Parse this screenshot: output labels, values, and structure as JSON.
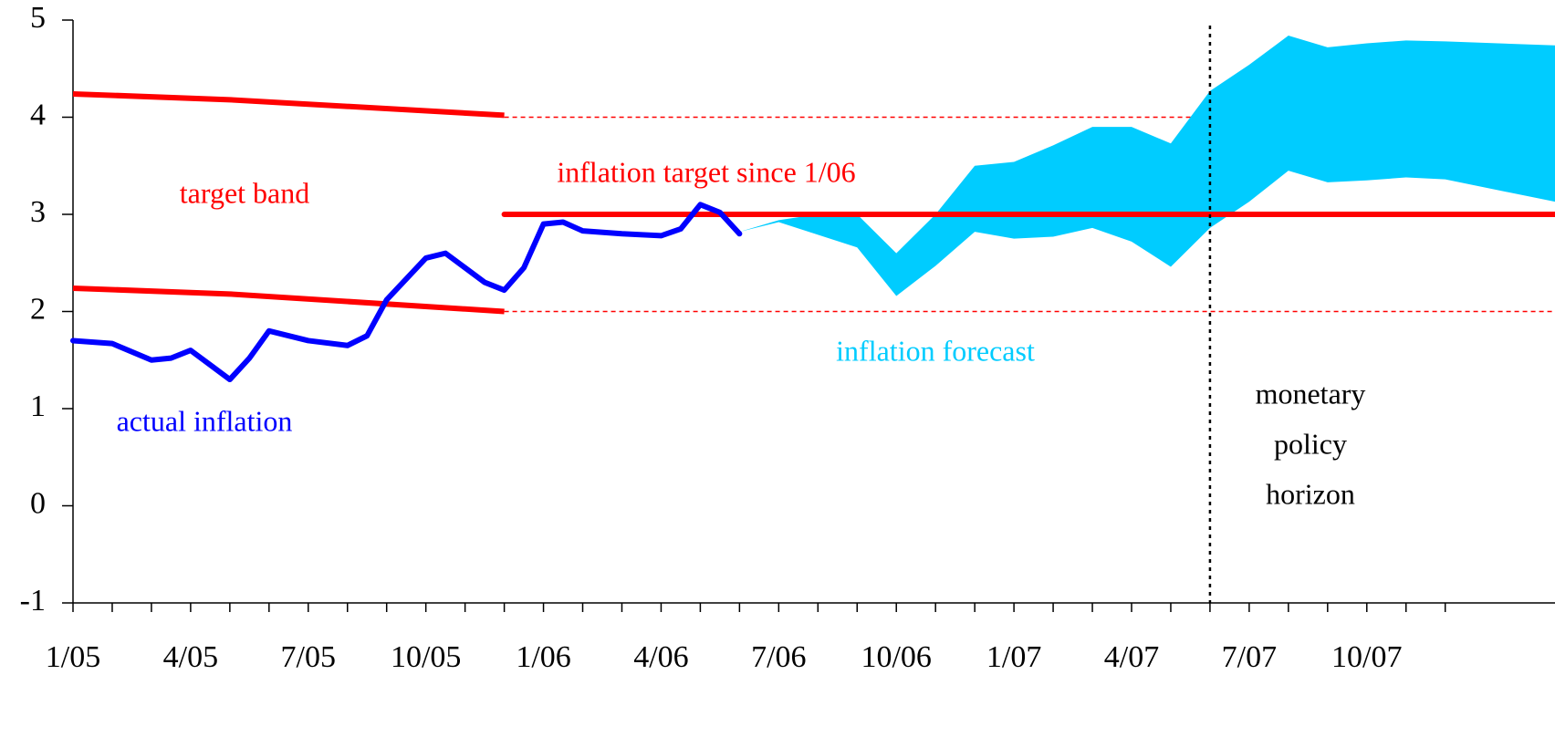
{
  "chart_data": {
    "type": "line",
    "xlim": [
      0,
      37.8
    ],
    "ylim": [
      -1,
      5
    ],
    "yticks": [
      -1,
      0,
      1,
      2,
      3,
      4,
      5
    ],
    "xticks": [
      {
        "value": 0,
        "label": "1/05"
      },
      {
        "value": 3,
        "label": "4/05"
      },
      {
        "value": 6,
        "label": "7/05"
      },
      {
        "value": 9,
        "label": "10/05"
      },
      {
        "value": 12,
        "label": "1/06"
      },
      {
        "value": 15,
        "label": "4/06"
      },
      {
        "value": 18,
        "label": "7/06"
      },
      {
        "value": 21,
        "label": "10/06"
      },
      {
        "value": 24,
        "label": "1/07"
      },
      {
        "value": 27,
        "label": "4/07"
      },
      {
        "value": 30,
        "label": "7/07"
      },
      {
        "value": 33,
        "label": "10/07"
      }
    ],
    "xminorticks": [
      1,
      2,
      4,
      5,
      7,
      8,
      10,
      11,
      13,
      14,
      16,
      17,
      19,
      20,
      22,
      23,
      25,
      26,
      28,
      29,
      31,
      32,
      34,
      35
    ],
    "series": [
      {
        "name": "target band",
        "kind": "band-lines",
        "color": "#ff0000",
        "x": [
          0,
          4,
          11
        ],
        "lower": [
          2.24,
          2.18,
          2.0
        ],
        "upper": [
          4.24,
          4.18,
          4.02
        ]
      },
      {
        "kind": "dotted",
        "color": "#ff0000",
        "x": [
          11,
          37.8
        ],
        "values": [
          4,
          4
        ]
      },
      {
        "kind": "dotted",
        "color": "#ff0000",
        "x": [
          11,
          37.8
        ],
        "values": [
          2,
          2
        ]
      },
      {
        "name": "inflation forecast",
        "kind": "area",
        "color": "#00ccff",
        "x": [
          17,
          18,
          19,
          20,
          21,
          22,
          23,
          24,
          25,
          26,
          27,
          28,
          29,
          30,
          31,
          32,
          33,
          34,
          35,
          37.8
        ],
        "lower": [
          2.82,
          2.92,
          2.79,
          2.66,
          2.16,
          2.47,
          2.82,
          2.75,
          2.77,
          2.86,
          2.72,
          2.46,
          2.86,
          3.13,
          3.45,
          3.33,
          3.35,
          3.38,
          3.36,
          3.13
        ],
        "upper": [
          2.82,
          2.94,
          3.0,
          3.0,
          2.6,
          3.0,
          3.5,
          3.54,
          3.71,
          3.9,
          3.9,
          3.73,
          4.27,
          4.54,
          4.84,
          4.72,
          4.76,
          4.79,
          4.78,
          4.74
        ]
      },
      {
        "name": "inflation target since 1/06",
        "kind": "line",
        "color": "#ff0000",
        "x": [
          11,
          37.8
        ],
        "values": [
          3,
          3
        ]
      },
      {
        "name": "actual inflation",
        "kind": "line",
        "color": "#0000ff",
        "x": [
          0,
          1,
          2,
          2.5,
          3,
          3.5,
          4,
          4.5,
          5,
          6,
          7,
          7.5,
          8,
          9,
          9.5,
          10,
          10.5,
          11,
          11.5,
          12,
          12.5,
          13,
          14,
          15,
          15.5,
          16,
          16.5,
          17
        ],
        "values": [
          1.7,
          1.67,
          1.5,
          1.52,
          1.6,
          1.45,
          1.3,
          1.52,
          1.8,
          1.7,
          1.65,
          1.75,
          2.12,
          2.55,
          2.6,
          2.45,
          2.3,
          2.22,
          2.45,
          2.9,
          2.92,
          2.83,
          2.8,
          2.78,
          2.85,
          3.1,
          3.02,
          2.8
        ]
      }
    ],
    "policy_horizon": {
      "x": 29,
      "label": [
        "monetary",
        "policy",
        "horizon"
      ]
    }
  }
}
